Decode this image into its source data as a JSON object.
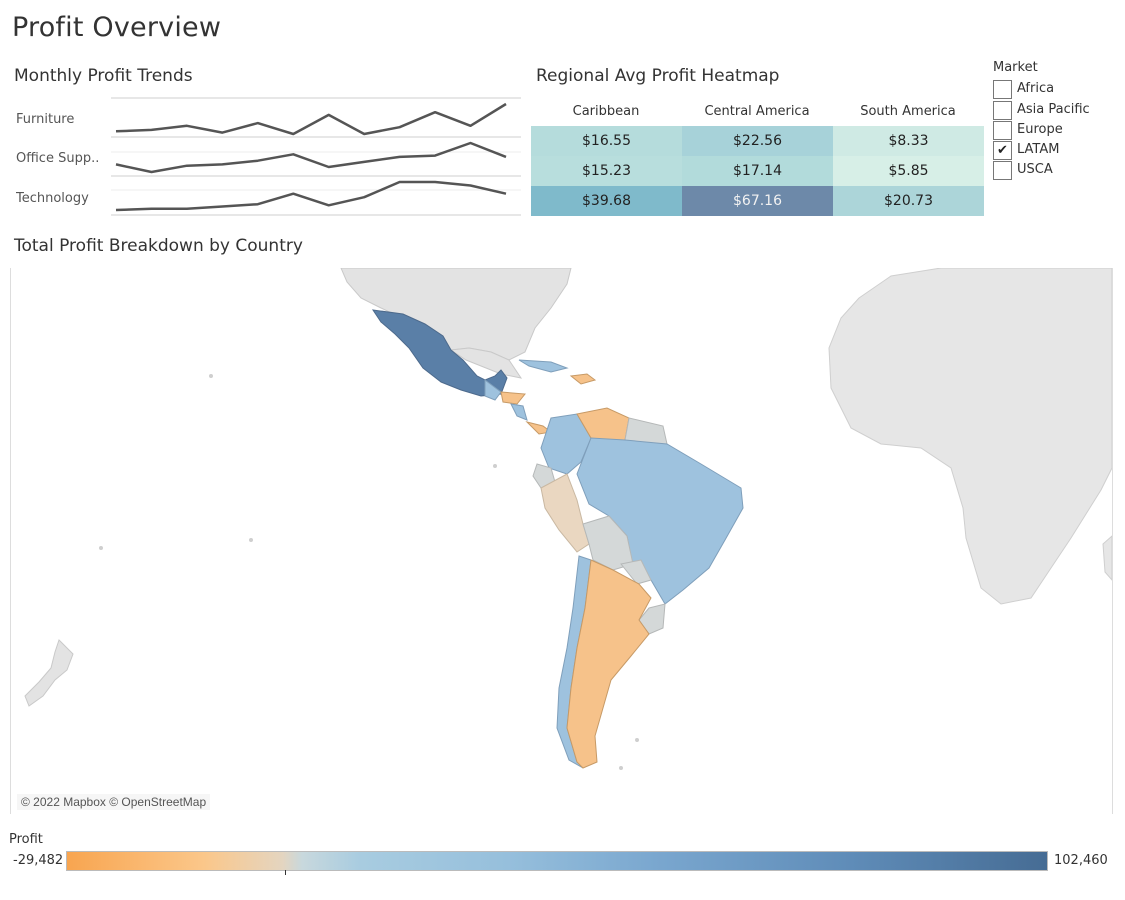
{
  "dashboard": {
    "title": "Profit Overview"
  },
  "trends": {
    "title": "Monthly Profit Trends",
    "rows": [
      {
        "label": "Furniture",
        "values": [
          4,
          5,
          8,
          3,
          10,
          2,
          16,
          2,
          7,
          18,
          8,
          24
        ]
      },
      {
        "label": "Office Supp..",
        "values": [
          10,
          4,
          9,
          10,
          13,
          18,
          8,
          12,
          16,
          17,
          27,
          16
        ]
      },
      {
        "label": "Technology",
        "values": [
          3,
          4,
          4,
          6,
          8,
          17,
          7,
          14,
          27,
          27,
          24,
          17
        ]
      }
    ]
  },
  "heatmap": {
    "title": "Regional Avg Profit Heatmap",
    "columns": [
      "Caribbean",
      "Central America",
      "South America"
    ],
    "rows": [
      {
        "cells": [
          {
            "text": "$16.55",
            "color": "#b5dcdc"
          },
          {
            "text": "$22.56",
            "color": "#a7d2d9"
          },
          {
            "text": "$8.33",
            "color": "#cfeae4"
          }
        ]
      },
      {
        "cells": [
          {
            "text": "$15.23",
            "color": "#b8dedd"
          },
          {
            "text": "$17.14",
            "color": "#b2dbdb"
          },
          {
            "text": "$5.85",
            "color": "#d7efe7"
          }
        ]
      },
      {
        "cells": [
          {
            "text": "$39.68",
            "color": "#7fbacb"
          },
          {
            "text": "$67.16",
            "color": "#6d89a9",
            "text_color": "#f2f2f2"
          },
          {
            "text": "$20.73",
            "color": "#acd5d9"
          }
        ]
      }
    ]
  },
  "market_filter": {
    "title": "Market",
    "items": [
      {
        "label": "Africa",
        "checked": false
      },
      {
        "label": "Asia Pacific",
        "checked": false
      },
      {
        "label": "Europe",
        "checked": false
      },
      {
        "label": "LATAM",
        "checked": true
      },
      {
        "label": "USCA",
        "checked": false
      }
    ]
  },
  "map": {
    "title": "Total Profit Breakdown by Country",
    "attribution": "© 2022 Mapbox © OpenStreetMap",
    "colors": {
      "land": "#e3e3e3",
      "border": "#c9c9c9",
      "high": "#5a7fa7",
      "mid": "#9ec2de",
      "neutral": "#d4d8d8",
      "negative": "#f6c28a",
      "slight_negative": "#ead7c1"
    }
  },
  "legend": {
    "title": "Profit",
    "min_label": "-29,482",
    "max_label": "102,460"
  },
  "check_glyph": "✔"
}
